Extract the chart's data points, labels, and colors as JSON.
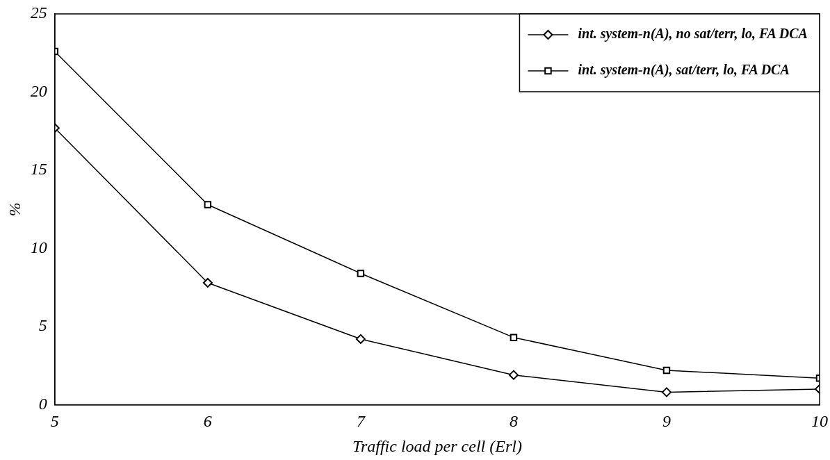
{
  "chart_data": {
    "type": "line",
    "xlabel": "Traffic load per cell (Erl)",
    "ylabel": "%",
    "x": [
      5,
      6,
      7,
      8,
      9,
      10
    ],
    "xlim": [
      5,
      10
    ],
    "xticks": [
      5,
      6,
      7,
      8,
      9,
      10
    ],
    "ylim": [
      0,
      25
    ],
    "yticks": [
      0,
      5,
      10,
      15,
      20,
      25
    ],
    "series": [
      {
        "name": "int. system-n(A), no sat/terr, lo, FA DCA",
        "color": "#000000",
        "marker": "diamond",
        "values": [
          17.7,
          7.8,
          4.2,
          1.9,
          0.8,
          1.0
        ]
      },
      {
        "name": "int. system-n(A), sat/terr, lo, FA DCA",
        "color": "#000000",
        "marker": "square",
        "values": [
          22.6,
          12.8,
          8.4,
          4.3,
          2.2,
          1.7
        ]
      }
    ],
    "grid": false,
    "legend": "top right",
    "line_style": "solid"
  }
}
